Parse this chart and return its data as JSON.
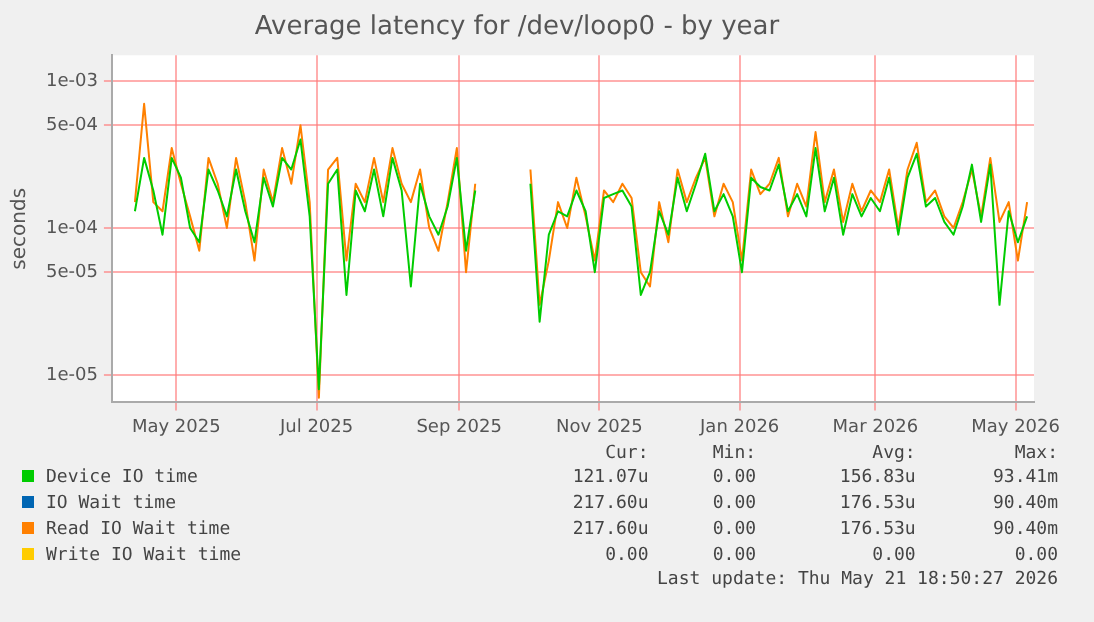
{
  "chart_data": {
    "type": "line",
    "title": "Average latency for /dev/loop0 - by year",
    "ylabel": "seconds",
    "log": "y",
    "grid": true,
    "legend": "bottom",
    "marker": "none",
    "line_style": "solid",
    "x": [
      "2025-04-13",
      "2025-04-17",
      "2025-04-21",
      "2025-04-25",
      "2025-04-29",
      "2025-05-03",
      "2025-05-07",
      "2025-05-11",
      "2025-05-15",
      "2025-05-19",
      "2025-05-23",
      "2025-05-27",
      "2025-05-31",
      "2025-06-04",
      "2025-06-08",
      "2025-06-12",
      "2025-06-16",
      "2025-06-20",
      "2025-06-24",
      "2025-06-28",
      "2025-07-02",
      "2025-07-06",
      "2025-07-10",
      "2025-07-14",
      "2025-07-18",
      "2025-07-22",
      "2025-07-26",
      "2025-07-30",
      "2025-08-03",
      "2025-08-07",
      "2025-08-11",
      "2025-08-15",
      "2025-08-19",
      "2025-08-23",
      "2025-08-27",
      "2025-08-31",
      "2025-09-04",
      "2025-09-08",
      "2025-09-20",
      "2025-10-02",
      "2025-10-06",
      "2025-10-10",
      "2025-10-14",
      "2025-10-18",
      "2025-10-22",
      "2025-10-26",
      "2025-10-30",
      "2025-11-03",
      "2025-11-07",
      "2025-11-11",
      "2025-11-15",
      "2025-11-19",
      "2025-11-23",
      "2025-11-27",
      "2025-12-01",
      "2025-12-05",
      "2025-12-09",
      "2025-12-13",
      "2025-12-17",
      "2025-12-21",
      "2025-12-25",
      "2025-12-29",
      "2026-01-02",
      "2026-01-06",
      "2026-01-10",
      "2026-01-14",
      "2026-01-18",
      "2026-01-22",
      "2026-01-26",
      "2026-01-30",
      "2026-02-03",
      "2026-02-07",
      "2026-02-11",
      "2026-02-15",
      "2026-02-19",
      "2026-02-23",
      "2026-02-27",
      "2026-03-03",
      "2026-03-07",
      "2026-03-11",
      "2026-03-15",
      "2026-03-19",
      "2026-03-23",
      "2026-03-27",
      "2026-03-31",
      "2026-04-04",
      "2026-04-08",
      "2026-04-12",
      "2026-04-16",
      "2026-04-20",
      "2026-04-24",
      "2026-04-28",
      "2026-05-02",
      "2026-05-06"
    ],
    "xlim": [
      "2025-04-03",
      "2026-05-09"
    ],
    "xticks": [
      {
        "value": "2025-05-01",
        "label": "May 2025"
      },
      {
        "value": "2025-07-01",
        "label": "Jul 2025"
      },
      {
        "value": "2025-09-01",
        "label": "Sep 2025"
      },
      {
        "value": "2025-11-01",
        "label": "Nov 2025"
      },
      {
        "value": "2026-01-01",
        "label": "Jan 2026"
      },
      {
        "value": "2026-03-01",
        "label": "Mar 2026"
      },
      {
        "value": "2026-05-01",
        "label": "May 2026"
      }
    ],
    "ylim": [
      6.5e-06,
      0.0015
    ],
    "yticks": [
      {
        "value": 1e-05,
        "label": "1e-05"
      },
      {
        "value": 5e-05,
        "label": "5e-05"
      },
      {
        "value": 0.0001,
        "label": "1e-04"
      },
      {
        "value": 0.0005,
        "label": "5e-04"
      },
      {
        "value": 0.001,
        "label": "1e-03"
      }
    ],
    "series": [
      {
        "name": "Device IO time",
        "color": "#00cc00",
        "values": [
          0.00013,
          0.0003,
          0.00018,
          9e-05,
          0.0003,
          0.00022,
          0.0001,
          8e-05,
          0.00025,
          0.00018,
          0.00012,
          0.00025,
          0.00013,
          8e-05,
          0.00022,
          0.00014,
          0.0003,
          0.00025,
          0.0004,
          0.00012,
          8e-06,
          0.0002,
          0.00025,
          3.5e-05,
          0.00018,
          0.00013,
          0.00025,
          0.00012,
          0.0003,
          0.00018,
          4e-05,
          0.0002,
          0.00012,
          9e-05,
          0.00014,
          0.0003,
          7e-05,
          0.00018,
          null,
          0.0002,
          2.3e-05,
          9e-05,
          0.00013,
          0.00012,
          0.00018,
          0.00013,
          5e-05,
          0.00016,
          0.00017,
          0.00018,
          0.00014,
          3.5e-05,
          5e-05,
          0.00013,
          9e-05,
          0.00022,
          0.00013,
          0.0002,
          0.00032,
          0.00013,
          0.00017,
          0.00012,
          5e-05,
          0.00022,
          0.00019,
          0.00018,
          0.00027,
          0.00013,
          0.00017,
          0.00012,
          0.00035,
          0.00013,
          0.00022,
          9e-05,
          0.00017,
          0.00012,
          0.00016,
          0.00013,
          0.00022,
          9e-05,
          0.00022,
          0.00032,
          0.00014,
          0.00016,
          0.00011,
          9e-05,
          0.00014,
          0.00027,
          0.00011,
          0.00027,
          3e-05,
          0.00013,
          8e-05,
          0.00012
        ]
      },
      {
        "name": "IO Wait time",
        "color": "#0066b3",
        "values": [
          null,
          null,
          null,
          null,
          null,
          null,
          null,
          null,
          null,
          null,
          null,
          null,
          null,
          null,
          null,
          null,
          null,
          null,
          null,
          null,
          null,
          null,
          null,
          null,
          null,
          null,
          null,
          null,
          null,
          null,
          null,
          null,
          null,
          null,
          null,
          null,
          null,
          null,
          null,
          null,
          null,
          null,
          null,
          null,
          null,
          null,
          null,
          null,
          null,
          null,
          null,
          null,
          null,
          null,
          null,
          null,
          null,
          null,
          null,
          null,
          null,
          null,
          null,
          null,
          null,
          null,
          null,
          null,
          null,
          null,
          null,
          null,
          null,
          null,
          null,
          null,
          null,
          null,
          null,
          null,
          null,
          null,
          null,
          null,
          null,
          null,
          null,
          null,
          null,
          null,
          null,
          null,
          null,
          null
        ]
      },
      {
        "name": "Read IO Wait time",
        "color": "#ff8000",
        "values": [
          0.00015,
          0.0007,
          0.00015,
          0.00013,
          0.00035,
          0.0002,
          0.00012,
          7e-05,
          0.0003,
          0.0002,
          0.0001,
          0.0003,
          0.00015,
          6e-05,
          0.00025,
          0.00015,
          0.00035,
          0.0002,
          0.0005,
          0.00015,
          7e-06,
          0.00025,
          0.0003,
          6e-05,
          0.0002,
          0.00015,
          0.0003,
          0.00015,
          0.00035,
          0.0002,
          0.00015,
          0.00025,
          0.0001,
          7e-05,
          0.00015,
          0.00035,
          5e-05,
          0.0002,
          null,
          0.00025,
          3e-05,
          6e-05,
          0.00015,
          0.0001,
          0.00022,
          0.00012,
          6e-05,
          0.00018,
          0.00015,
          0.0002,
          0.00016,
          5e-05,
          4e-05,
          0.00015,
          8e-05,
          0.00025,
          0.00015,
          0.00022,
          0.0003,
          0.00012,
          0.0002,
          0.00015,
          6e-05,
          0.00025,
          0.00017,
          0.0002,
          0.0003,
          0.00012,
          0.0002,
          0.00014,
          0.00045,
          0.00015,
          0.00025,
          0.00011,
          0.0002,
          0.00013,
          0.00018,
          0.00015,
          0.00025,
          0.0001,
          0.00025,
          0.00038,
          0.00015,
          0.00018,
          0.00012,
          0.0001,
          0.00015,
          0.00025,
          0.00012,
          0.0003,
          0.00011,
          0.00015,
          6e-05,
          0.00015
        ]
      },
      {
        "name": "Write IO Wait time",
        "color": "#ffcc00",
        "values": [
          null,
          null,
          null,
          null,
          null,
          null,
          null,
          null,
          null,
          null,
          null,
          null,
          null,
          null,
          null,
          null,
          null,
          null,
          null,
          null,
          null,
          null,
          null,
          null,
          null,
          null,
          null,
          null,
          null,
          null,
          null,
          null,
          null,
          null,
          null,
          null,
          null,
          null,
          null,
          null,
          null,
          null,
          null,
          null,
          null,
          null,
          null,
          null,
          null,
          null,
          null,
          null,
          null,
          null,
          null,
          null,
          null,
          null,
          null,
          null,
          null,
          null,
          null,
          null,
          null,
          null,
          null,
          null,
          null,
          null,
          null,
          null,
          null,
          null,
          null,
          null,
          null,
          null,
          null,
          null,
          null,
          null,
          null,
          null,
          null,
          null,
          null,
          null,
          null,
          null,
          null,
          null,
          null,
          null
        ]
      }
    ],
    "annotations": [
      "Cur:",
      "Min:",
      "Avg:",
      "Max:",
      "121.07u",
      "0.00",
      "156.83u",
      "93.41m",
      "217.60u",
      "0.00",
      "176.53u",
      "90.40m",
      "217.60u",
      "0.00",
      "176.53u",
      "90.40m",
      "0.00",
      "0.00",
      "0.00",
      "0.00",
      "Last update: Thu May 21 18:50:27 2026"
    ]
  }
}
